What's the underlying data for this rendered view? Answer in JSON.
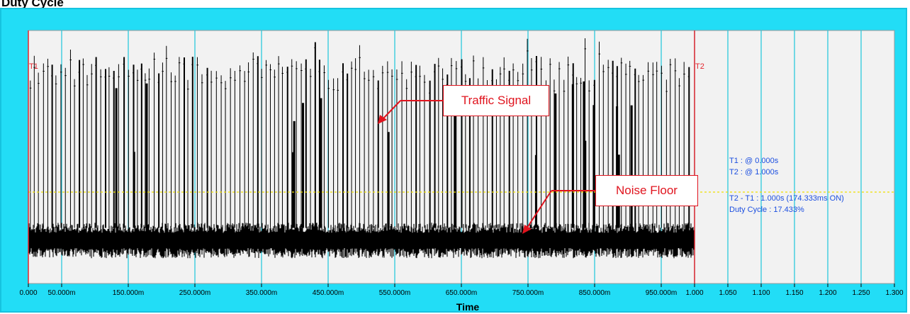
{
  "page": {
    "title": "Duty Cycle"
  },
  "chart_data": {
    "type": "line",
    "title": "Duty Cycle",
    "xlabel": "Time",
    "ylabel": "",
    "xlim": [
      0,
      1.3
    ],
    "tick_values": [
      0,
      0.05,
      0.15,
      0.25,
      0.35,
      0.45,
      0.55,
      0.65,
      0.75,
      0.85,
      0.95,
      1.0,
      1.05,
      1.1,
      1.15,
      1.2,
      1.25,
      1.3
    ],
    "tick_labels": [
      "0.000",
      "50.000m",
      "150.000m",
      "250.000m",
      "350.000m",
      "450.000m",
      "550.000m",
      "650.000m",
      "750.000m",
      "850.000m",
      "950.000m",
      "1.000",
      "1.050",
      "1.100",
      "1.150",
      "1.200",
      "1.250",
      "1.300"
    ],
    "grid": true,
    "cursors": [
      {
        "name": "T1",
        "x": 0.0
      },
      {
        "name": "T2",
        "x": 1.0
      }
    ],
    "signal": {
      "x_range": [
        0.0,
        1.0
      ],
      "noise_floor_level": 0.38,
      "noise_band": [
        0.12,
        0.22
      ],
      "pulse_peak_typical": 0.9,
      "pulse_period_s": 0.0067
    },
    "annotations": [
      {
        "text": "Traffic Signal",
        "target_x": 0.53
      },
      {
        "text": "Noise Floor",
        "target_x": 0.745
      }
    ],
    "measurements": {
      "t1": "T1 : @ 0.000s",
      "t2": "T2 : @ 1.000s",
      "delta": "T2 - T1 : 1.000s (174.333ms ON)",
      "duty": "Duty Cycle : 17.433%"
    },
    "colors": {
      "frame": "#22ddf6",
      "plot_bg": "#f2f2f2",
      "grid": "#1cc6dc",
      "cursor": "#e3262f",
      "threshold": "#f0e000",
      "signal": "#000000",
      "annotation": "#e0141e",
      "measurement_text": "#1c4fe0"
    }
  }
}
